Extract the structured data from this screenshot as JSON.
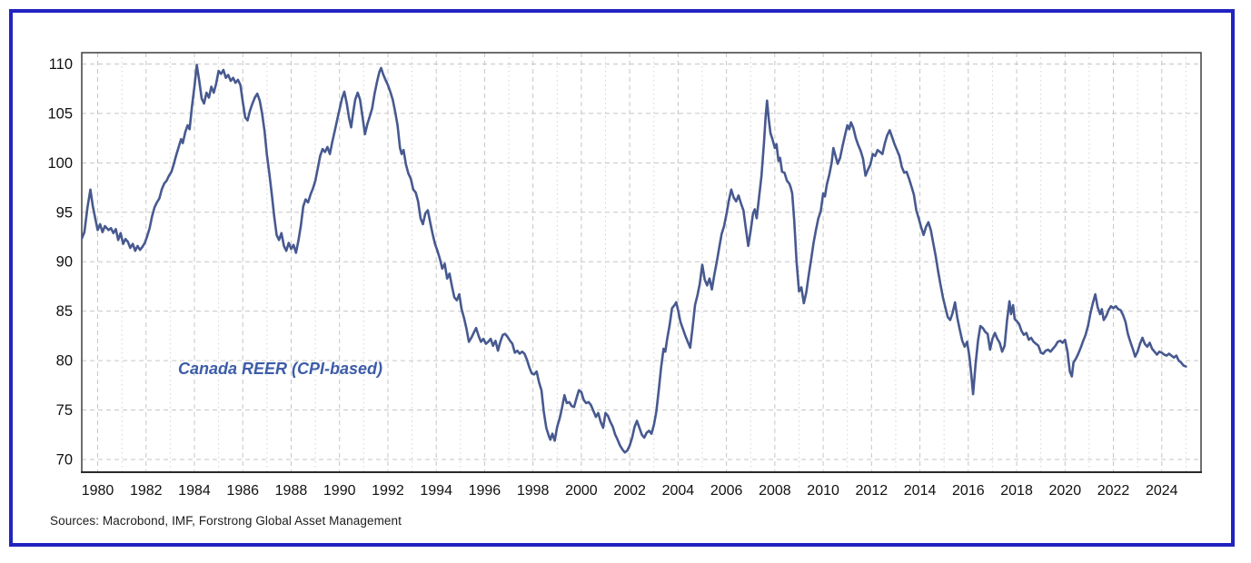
{
  "page": {
    "border_color": "#2222c0",
    "background_color": "#ffffff"
  },
  "footer": {
    "sources": "Sources: Macrobond, IMF, Forstrong Global Asset Management"
  },
  "chart_data": {
    "type": "line",
    "title": "",
    "xlabel": "",
    "ylabel": "",
    "annotation": "Canada REER (CPI-based)",
    "annotation_color": "#3c5ca8",
    "line_color": "#47598f",
    "grid": "dashed",
    "grid_color": "#c6c6c6",
    "minor_grid_color": "#d4d4d4",
    "frame_color": "#3f3f3f",
    "tick_label_color": "#111111",
    "ylim": [
      68.7,
      111.2
    ],
    "xlim": [
      1979.35,
      2025.63
    ],
    "y_ticks": [
      70,
      75,
      80,
      85,
      90,
      95,
      100,
      105,
      110
    ],
    "x_tick_years": [
      1980,
      1982,
      1984,
      1986,
      1988,
      1990,
      1992,
      1994,
      1996,
      1998,
      2000,
      2002,
      2004,
      2006,
      2008,
      2010,
      2012,
      2014,
      2016,
      2018,
      2020,
      2022,
      2024
    ],
    "series": [
      {
        "name": "Canada REER (CPI-based)",
        "x": [
          1979.3,
          1979.45,
          1979.58,
          1979.7,
          1979.8,
          1979.9,
          1980.0,
          1980.1,
          1980.2,
          1980.3,
          1980.45,
          1980.55,
          1980.65,
          1980.75,
          1980.85,
          1980.95,
          1981.05,
          1981.15,
          1981.25,
          1981.35,
          1981.45,
          1981.55,
          1981.65,
          1981.75,
          1981.85,
          1981.95,
          1982.05,
          1982.15,
          1982.25,
          1982.35,
          1982.45,
          1982.55,
          1982.65,
          1982.75,
          1982.85,
          1982.95,
          1983.05,
          1983.15,
          1983.25,
          1983.35,
          1983.45,
          1983.52,
          1983.62,
          1983.72,
          1983.8,
          1983.9,
          1984.0,
          1984.1,
          1984.2,
          1984.3,
          1984.4,
          1984.5,
          1984.6,
          1984.7,
          1984.8,
          1984.9,
          1985.0,
          1985.1,
          1985.2,
          1985.3,
          1985.4,
          1985.5,
          1985.6,
          1985.7,
          1985.8,
          1985.9,
          1986.0,
          1986.1,
          1986.2,
          1986.3,
          1986.4,
          1986.5,
          1986.6,
          1986.7,
          1986.8,
          1986.9,
          1987.0,
          1987.1,
          1987.2,
          1987.3,
          1987.4,
          1987.5,
          1987.6,
          1987.7,
          1987.8,
          1987.9,
          1988.0,
          1988.1,
          1988.2,
          1988.3,
          1988.4,
          1988.5,
          1988.6,
          1988.7,
          1988.8,
          1988.9,
          1989.0,
          1989.1,
          1989.2,
          1989.3,
          1989.4,
          1989.5,
          1989.6,
          1989.7,
          1989.8,
          1989.9,
          1990.0,
          1990.1,
          1990.2,
          1990.3,
          1990.4,
          1990.48,
          1990.56,
          1990.65,
          1990.75,
          1990.85,
          1990.95,
          1991.05,
          1991.15,
          1991.25,
          1991.35,
          1991.45,
          1991.55,
          1991.65,
          1991.72,
          1991.8,
          1991.9,
          1992.0,
          1992.1,
          1992.2,
          1992.3,
          1992.4,
          1992.5,
          1992.57,
          1992.65,
          1992.75,
          1992.85,
          1992.95,
          1993.05,
          1993.15,
          1993.25,
          1993.35,
          1993.45,
          1993.55,
          1993.65,
          1993.75,
          1993.85,
          1993.95,
          1994.05,
          1994.15,
          1994.25,
          1994.35,
          1994.45,
          1994.55,
          1994.65,
          1994.75,
          1994.85,
          1994.95,
          1995.05,
          1995.15,
          1995.25,
          1995.35,
          1995.45,
          1995.55,
          1995.65,
          1995.75,
          1995.85,
          1995.95,
          1996.05,
          1996.15,
          1996.25,
          1996.35,
          1996.45,
          1996.55,
          1996.65,
          1996.75,
          1996.85,
          1996.95,
          1997.05,
          1997.15,
          1997.25,
          1997.35,
          1997.45,
          1997.55,
          1997.65,
          1997.75,
          1997.85,
          1997.95,
          1998.05,
          1998.15,
          1998.25,
          1998.35,
          1998.45,
          1998.55,
          1998.65,
          1998.72,
          1998.8,
          1998.9,
          1999.0,
          1999.1,
          1999.2,
          1999.3,
          1999.4,
          1999.5,
          1999.6,
          1999.7,
          1999.8,
          1999.9,
          2000.0,
          2000.1,
          2000.2,
          2000.3,
          2000.4,
          2000.5,
          2000.6,
          2000.7,
          2000.8,
          2000.9,
          2001.0,
          2001.1,
          2001.2,
          2001.3,
          2001.4,
          2001.5,
          2001.6,
          2001.7,
          2001.8,
          2001.9,
          2002.0,
          2002.1,
          2002.2,
          2002.3,
          2002.4,
          2002.5,
          2002.6,
          2002.7,
          2002.8,
          2002.9,
          2003.0,
          2003.1,
          2003.2,
          2003.3,
          2003.4,
          2003.47,
          2003.55,
          2003.65,
          2003.75,
          2003.85,
          2003.92,
          2004.0,
          2004.1,
          2004.2,
          2004.3,
          2004.4,
          2004.5,
          2004.6,
          2004.7,
          2004.8,
          2004.9,
          2005.0,
          2005.1,
          2005.2,
          2005.3,
          2005.4,
          2005.5,
          2005.6,
          2005.7,
          2005.8,
          2005.9,
          2006.0,
          2006.1,
          2006.2,
          2006.3,
          2006.4,
          2006.5,
          2006.6,
          2006.7,
          2006.8,
          2006.9,
          2007.0,
          2007.1,
          2007.17,
          2007.25,
          2007.35,
          2007.45,
          2007.55,
          2007.62,
          2007.68,
          2007.75,
          2007.82,
          2007.9,
          2008.0,
          2008.07,
          2008.15,
          2008.22,
          2008.3,
          2008.4,
          2008.5,
          2008.6,
          2008.66,
          2008.72,
          2008.8,
          2008.9,
          2009.0,
          2009.1,
          2009.2,
          2009.3,
          2009.4,
          2009.5,
          2009.6,
          2009.7,
          2009.8,
          2009.9,
          2010.0,
          2010.07,
          2010.15,
          2010.25,
          2010.35,
          2010.42,
          2010.5,
          2010.6,
          2010.7,
          2010.8,
          2010.9,
          2011.0,
          2011.08,
          2011.15,
          2011.25,
          2011.35,
          2011.45,
          2011.55,
          2011.65,
          2011.75,
          2011.85,
          2011.95,
          2012.05,
          2012.15,
          2012.25,
          2012.35,
          2012.45,
          2012.55,
          2012.65,
          2012.75,
          2012.85,
          2012.95,
          2013.05,
          2013.15,
          2013.25,
          2013.35,
          2013.45,
          2013.55,
          2013.65,
          2013.75,
          2013.85,
          2013.95,
          2014.05,
          2014.15,
          2014.25,
          2014.35,
          2014.45,
          2014.55,
          2014.65,
          2014.75,
          2014.85,
          2014.95,
          2015.05,
          2015.15,
          2015.25,
          2015.35,
          2015.45,
          2015.55,
          2015.65,
          2015.75,
          2015.85,
          2015.95,
          2016.05,
          2016.12,
          2016.2,
          2016.3,
          2016.4,
          2016.5,
          2016.6,
          2016.7,
          2016.8,
          2016.9,
          2017.0,
          2017.1,
          2017.2,
          2017.3,
          2017.4,
          2017.5,
          2017.6,
          2017.7,
          2017.77,
          2017.85,
          2017.92,
          2018.0,
          2018.1,
          2018.2,
          2018.3,
          2018.4,
          2018.5,
          2018.6,
          2018.7,
          2018.8,
          2018.9,
          2019.0,
          2019.1,
          2019.2,
          2019.3,
          2019.4,
          2019.5,
          2019.6,
          2019.7,
          2019.8,
          2019.9,
          2020.0,
          2020.1,
          2020.2,
          2020.28,
          2020.35,
          2020.45,
          2020.55,
          2020.65,
          2020.75,
          2020.85,
          2020.95,
          2021.05,
          2021.15,
          2021.25,
          2021.35,
          2021.45,
          2021.52,
          2021.6,
          2021.7,
          2021.8,
          2021.9,
          2022.0,
          2022.1,
          2022.2,
          2022.3,
          2022.4,
          2022.5,
          2022.6,
          2022.7,
          2022.8,
          2022.9,
          2023.0,
          2023.1,
          2023.2,
          2023.3,
          2023.4,
          2023.5,
          2023.6,
          2023.7,
          2023.8,
          2023.9,
          2024.0,
          2024.1,
          2024.2,
          2024.3,
          2024.4,
          2024.5,
          2024.6,
          2024.7,
          2024.8,
          2024.9,
          2025.0
        ],
        "y": [
          92.1,
          93.0,
          95.5,
          97.3,
          95.6,
          94.4,
          93.2,
          93.8,
          93.0,
          93.6,
          93.2,
          93.4,
          92.9,
          93.3,
          92.2,
          92.9,
          91.8,
          92.3,
          92.0,
          91.4,
          91.8,
          91.1,
          91.6,
          91.2,
          91.5,
          91.9,
          92.6,
          93.4,
          94.6,
          95.5,
          96.0,
          96.4,
          97.3,
          97.9,
          98.2,
          98.7,
          99.1,
          99.9,
          100.8,
          101.6,
          102.4,
          102.0,
          103.1,
          103.8,
          103.4,
          105.7,
          107.7,
          109.9,
          108.3,
          106.5,
          106.0,
          107.1,
          106.6,
          107.7,
          107.1,
          108.0,
          109.3,
          109.0,
          109.4,
          108.6,
          108.9,
          108.3,
          108.6,
          108.1,
          108.4,
          107.9,
          106.2,
          104.6,
          104.3,
          105.3,
          106.0,
          106.6,
          107.0,
          106.3,
          105.0,
          103.2,
          100.8,
          98.9,
          96.8,
          94.6,
          92.7,
          92.2,
          92.9,
          91.6,
          91.1,
          91.9,
          91.3,
          91.7,
          90.9,
          92.1,
          93.6,
          95.6,
          96.3,
          96.0,
          96.8,
          97.4,
          98.2,
          99.4,
          100.7,
          101.4,
          101.1,
          101.6,
          100.9,
          102.1,
          103.2,
          104.3,
          105.4,
          106.5,
          107.2,
          106.0,
          104.5,
          103.6,
          105.0,
          106.4,
          107.1,
          106.4,
          104.7,
          102.9,
          103.9,
          104.7,
          105.5,
          107.0,
          108.2,
          109.2,
          109.6,
          109.0,
          108.4,
          107.9,
          107.2,
          106.4,
          105.2,
          103.8,
          101.5,
          100.9,
          101.3,
          99.8,
          98.9,
          98.4,
          97.3,
          97.0,
          96.1,
          94.4,
          93.8,
          94.9,
          95.2,
          94.0,
          92.8,
          91.8,
          91.1,
          90.3,
          89.3,
          89.8,
          88.3,
          88.8,
          87.5,
          86.4,
          86.1,
          86.7,
          85.2,
          84.3,
          83.2,
          81.9,
          82.3,
          82.8,
          83.3,
          82.5,
          81.9,
          82.2,
          81.7,
          81.9,
          82.2,
          81.5,
          82.0,
          81.0,
          81.9,
          82.6,
          82.7,
          82.4,
          82.0,
          81.7,
          80.8,
          81.0,
          80.7,
          80.9,
          80.7,
          80.1,
          79.3,
          78.7,
          78.6,
          78.9,
          77.8,
          77.0,
          74.8,
          73.2,
          72.4,
          72.0,
          72.6,
          71.9,
          73.3,
          74.1,
          75.2,
          76.5,
          75.7,
          75.8,
          75.4,
          75.3,
          76.2,
          77.0,
          76.8,
          76.0,
          75.7,
          75.8,
          75.5,
          74.9,
          74.3,
          74.7,
          73.8,
          73.2,
          74.7,
          74.4,
          73.8,
          73.3,
          72.5,
          72.0,
          71.4,
          71.0,
          70.7,
          70.9,
          71.4,
          72.2,
          73.3,
          73.9,
          73.2,
          72.5,
          72.2,
          72.7,
          72.9,
          72.6,
          73.5,
          74.8,
          77.0,
          79.3,
          81.2,
          80.9,
          82.2,
          83.6,
          85.3,
          85.6,
          85.9,
          85.1,
          83.9,
          83.2,
          82.5,
          81.9,
          81.3,
          83.4,
          85.6,
          86.6,
          87.8,
          89.7,
          88.2,
          87.6,
          88.3,
          87.2,
          88.7,
          90.0,
          91.4,
          92.8,
          93.6,
          94.8,
          96.2,
          97.3,
          96.5,
          96.1,
          96.7,
          95.9,
          95.2,
          93.4,
          91.6,
          93.1,
          94.9,
          95.3,
          94.4,
          96.6,
          98.7,
          102.0,
          104.6,
          106.3,
          104.4,
          103.0,
          102.4,
          101.5,
          101.9,
          100.2,
          100.5,
          99.1,
          99.0,
          98.2,
          97.9,
          97.5,
          96.9,
          94.2,
          90.0,
          87.0,
          87.4,
          85.8,
          86.9,
          88.6,
          90.2,
          91.9,
          93.2,
          94.4,
          95.1,
          96.9,
          96.6,
          97.8,
          98.8,
          100.0,
          101.5,
          100.8,
          99.9,
          100.5,
          101.7,
          102.8,
          103.8,
          103.4,
          104.1,
          103.5,
          102.5,
          101.8,
          101.2,
          100.4,
          98.7,
          99.3,
          99.8,
          100.9,
          100.7,
          101.3,
          101.1,
          100.9,
          102.0,
          102.8,
          103.3,
          102.6,
          101.9,
          101.3,
          100.7,
          99.6,
          99.0,
          99.1,
          98.4,
          97.6,
          96.8,
          95.2,
          94.4,
          93.5,
          92.7,
          93.5,
          94.0,
          93.2,
          91.9,
          90.6,
          89.1,
          87.7,
          86.4,
          85.4,
          84.4,
          84.1,
          84.8,
          85.9,
          84.3,
          83.1,
          82.0,
          81.4,
          81.9,
          80.3,
          78.7,
          76.6,
          79.6,
          82.0,
          83.5,
          83.3,
          82.9,
          82.7,
          81.1,
          82.2,
          82.8,
          82.2,
          81.8,
          80.9,
          81.5,
          84.0,
          86.0,
          84.7,
          85.6,
          84.2,
          84.0,
          83.7,
          83.0,
          82.6,
          82.8,
          82.1,
          82.3,
          81.9,
          81.7,
          81.5,
          80.8,
          80.7,
          81.0,
          81.1,
          80.9,
          81.2,
          81.5,
          81.9,
          82.0,
          81.8,
          82.1,
          80.9,
          78.9,
          78.4,
          79.8,
          80.2,
          80.7,
          81.3,
          82.0,
          82.6,
          83.5,
          84.8,
          85.8,
          86.7,
          85.4,
          84.7,
          85.2,
          84.1,
          84.5,
          85.1,
          85.5,
          85.3,
          85.5,
          85.2,
          85.1,
          84.6,
          83.9,
          82.7,
          81.9,
          81.2,
          80.4,
          80.9,
          81.7,
          82.3,
          81.7,
          81.4,
          81.8,
          81.2,
          80.9,
          80.6,
          80.9,
          80.8,
          80.6,
          80.5,
          80.7,
          80.5,
          80.3,
          80.5,
          80.0,
          79.8,
          79.5,
          79.4
        ]
      }
    ],
    "sources_note": "Sources: Macrobond, IMF, Forstrong Global Asset Management"
  }
}
